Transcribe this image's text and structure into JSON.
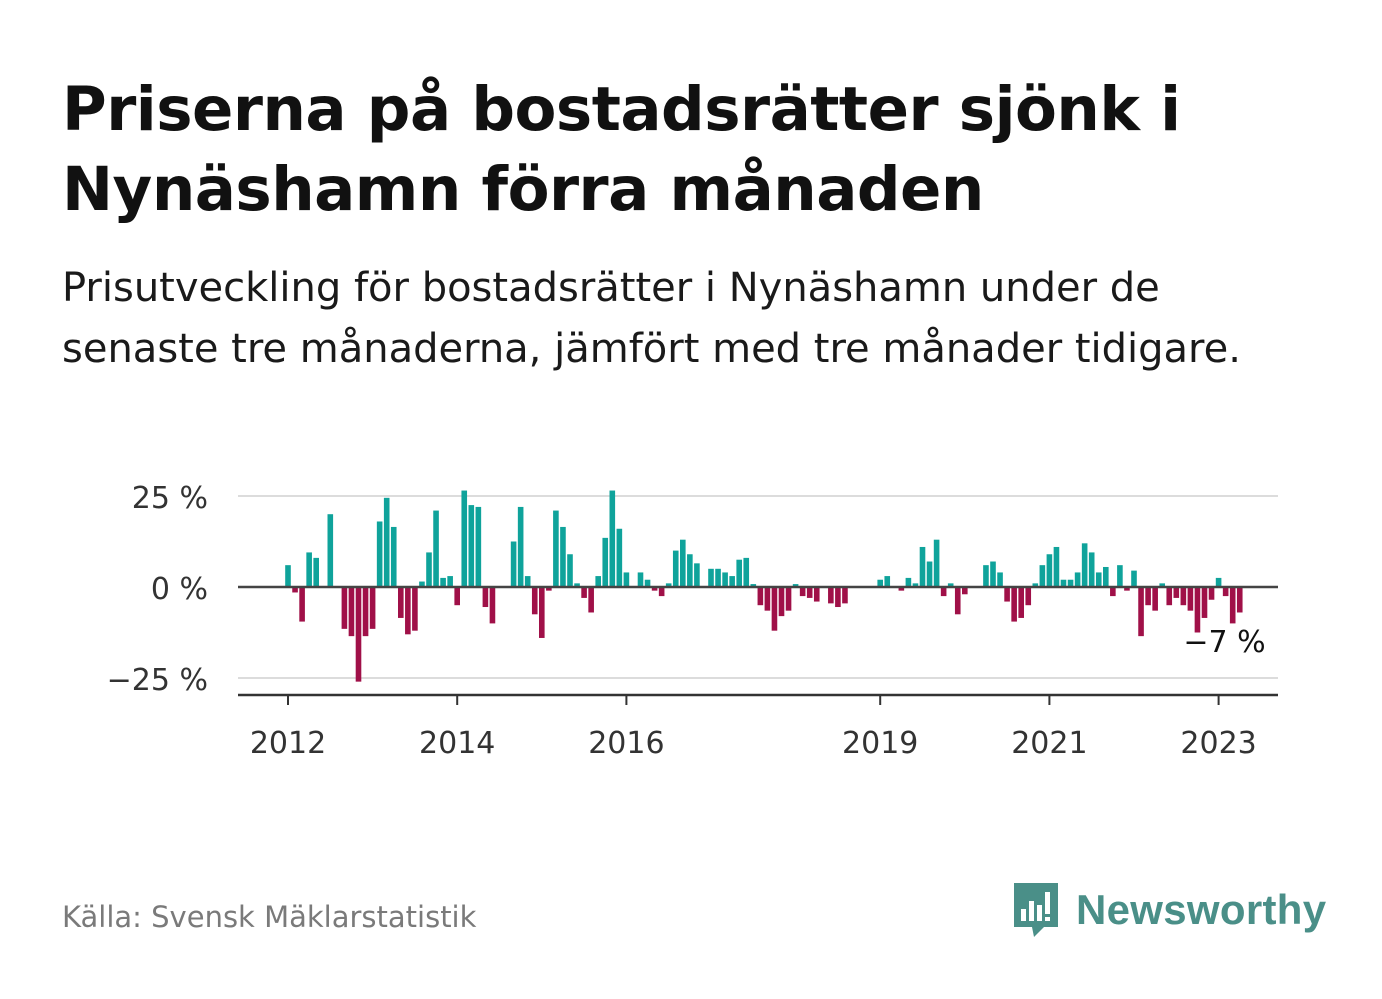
{
  "title": "Priserna på bostadsrätter sjönk i Nynäshamn förra månaden",
  "subtitle": "Prisutveckling för bostadsrätter i Nynäshamn under de senaste tre månaderna, jämfört med tre månader tidigare.",
  "source": "Källa: Svensk Mäklarstatistik",
  "brand": "Newsworthy",
  "colors": {
    "positive": "#0fa39b",
    "negative": "#a01048",
    "brand": "#4a8f88",
    "grid": "#dcdcdc",
    "zero": "#444444"
  },
  "chart_data": {
    "type": "bar",
    "x_start": "2012-01",
    "frequency": "monthly",
    "ylim": [
      -30,
      30
    ],
    "y_ticks": [
      {
        "value": 25,
        "label": "25 %"
      },
      {
        "value": 0,
        "label": "0 %"
      },
      {
        "value": -25,
        "label": "−25 %"
      }
    ],
    "x_ticks": [
      {
        "date": "2012-01",
        "label": "2012"
      },
      {
        "date": "2014-01",
        "label": "2014"
      },
      {
        "date": "2016-01",
        "label": "2016"
      },
      {
        "date": "2019-01",
        "label": "2019"
      },
      {
        "date": "2021-01",
        "label": "2021"
      },
      {
        "date": "2023-01",
        "label": "2023"
      }
    ],
    "annotation": {
      "label": "−7 %",
      "date": "2023-02"
    },
    "values": [
      6,
      -1.5,
      -9.5,
      9.5,
      8,
      null,
      20,
      null,
      -11.5,
      -13.5,
      -26,
      -13.5,
      -11.5,
      18,
      24.5,
      16.5,
      -8.5,
      -13,
      -12,
      1.5,
      9.5,
      21,
      2.5,
      3,
      -5,
      26.5,
      22.5,
      22,
      -5.5,
      -10,
      null,
      null,
      12.5,
      22,
      3,
      -7.5,
      -14,
      -1,
      21,
      16.5,
      9,
      1,
      -3,
      -7,
      3,
      13.5,
      26.5,
      16,
      4,
      null,
      4,
      2,
      -1,
      -2.5,
      1,
      10,
      13,
      9,
      6.5,
      null,
      5,
      5,
      4,
      3,
      7.5,
      8,
      0.8,
      -5,
      -6.5,
      -12,
      -8,
      -6.5,
      0.8,
      -2.5,
      -3,
      -4,
      null,
      -4.5,
      -5.5,
      -4.5,
      null,
      null,
      null,
      null,
      2,
      3,
      null,
      -1,
      2.5,
      1,
      11,
      7,
      13,
      -2.5,
      1,
      -7.5,
      -2,
      null,
      null,
      6,
      7,
      4,
      -4,
      -9.5,
      -8.5,
      -5,
      1,
      6,
      9,
      11,
      2,
      2,
      4,
      12,
      9.5,
      4,
      5.5,
      -2.5,
      6,
      -1,
      4.5,
      -13.5,
      -5,
      -6.5,
      1,
      -5,
      -3,
      -5,
      -6.5,
      -12.5,
      -8.5,
      -3.5,
      2.5,
      -2.5,
      -10,
      -7
    ]
  }
}
